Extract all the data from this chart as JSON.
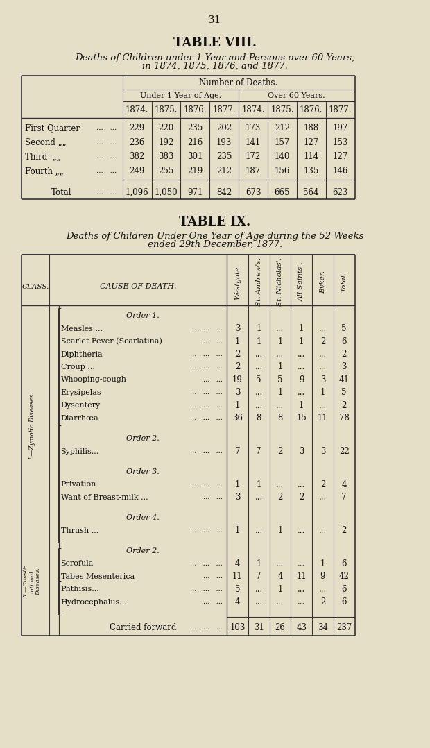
{
  "bg_color": "#cdc9bc",
  "text_color": "#1a1a1a",
  "page_number": "31",
  "table8": {
    "title": "TABLE VIII.",
    "subtitle1": "Deaths of Children under 1 Year and Persons over 60 Years,",
    "subtitle2": "in 1874, 1875, 1876, and 1877.",
    "header1": "Number of Deaths.",
    "header2a": "Under 1 Year of Age.",
    "header2b": "Over 60 Years.",
    "years": [
      "1874.",
      "1875.",
      "1876.",
      "1877.",
      "1874.",
      "1875.",
      "1876.",
      "1877."
    ],
    "rows": [
      {
        "label": "First Quarter",
        "dots": "...   ...",
        "vals": [
          "229",
          "220",
          "235",
          "202",
          "173",
          "212",
          "188",
          "197"
        ]
      },
      {
        "label": "Second „„",
        "dots": "...   ...",
        "vals": [
          "236",
          "192",
          "216",
          "193",
          "141",
          "157",
          "127",
          "153"
        ]
      },
      {
        "label": "Third  „„",
        "dots": "...   ...",
        "vals": [
          "382",
          "383",
          "301",
          "235",
          "172",
          "140",
          "114",
          "127"
        ]
      },
      {
        "label": "Fourth „„",
        "dots": "...   ...",
        "vals": [
          "249",
          "255",
          "219",
          "212",
          "187",
          "156",
          "135",
          "146"
        ]
      }
    ],
    "total_label": "Total",
    "total_vals": [
      "1,096",
      "1,050",
      "971",
      "842",
      "673",
      "665",
      "564",
      "623"
    ]
  },
  "table9": {
    "title": "TABLE IX.",
    "subtitle1": "Deaths of Children Under One Year of Age during the 52 Weeks",
    "subtitle2": "ended 29th December, 1877.",
    "col_headers": [
      "Westgate.",
      "St. Andrew's.",
      "St. Nicholas'.",
      "All Saints'.",
      "Byker.",
      "Total."
    ],
    "sections": [
      {
        "class_vertical": "I.—Zymotic Diseases.",
        "subsections": [
          {
            "order": "Order 1.",
            "rows": [
              {
                "cause": "Measles ...",
                "dots": "...   ...   ...",
                "vals": [
                  "3",
                  "1",
                  "...",
                  "1",
                  "...",
                  "5"
                ]
              },
              {
                "cause": "Scarlet Fever (Scarlatina)",
                "dots": "...   ...",
                "vals": [
                  "1",
                  "1",
                  "1",
                  "1",
                  "2",
                  "6"
                ]
              },
              {
                "cause": "Diphtheria",
                "dots": "...   ...   ...",
                "vals": [
                  "2",
                  "...",
                  "...",
                  "...",
                  "...",
                  "2"
                ]
              },
              {
                "cause": "Croup ...",
                "dots": "...   ...   ...",
                "vals": [
                  "2",
                  "...",
                  "1",
                  "...",
                  "...",
                  "3"
                ]
              },
              {
                "cause": "Whooping-cough",
                "dots": "...   ...",
                "vals": [
                  "19",
                  "5",
                  "5",
                  "9",
                  "3",
                  "41"
                ]
              },
              {
                "cause": "Erysipelas",
                "dots": "...   ...   ...",
                "vals": [
                  "3",
                  "...",
                  "1",
                  "...",
                  "1",
                  "5"
                ]
              },
              {
                "cause": "Dysentery",
                "dots": "...   ...   ...",
                "vals": [
                  "1",
                  "...",
                  "...",
                  "1",
                  "...",
                  "2"
                ]
              },
              {
                "cause": "Diarrhœa",
                "dots": "...   ...   ...",
                "vals": [
                  "36",
                  "8",
                  "8",
                  "15",
                  "11",
                  "78"
                ]
              }
            ]
          },
          {
            "order": "Order 2.",
            "rows": [
              {
                "cause": "Syphilis...",
                "dots": "...   ...   ...",
                "vals": [
                  "7",
                  "7",
                  "2",
                  "3",
                  "3",
                  "22"
                ]
              }
            ]
          },
          {
            "order": "Order 3.",
            "rows": [
              {
                "cause": "Privation",
                "dots": "...   ...   ...",
                "vals": [
                  "1",
                  "1",
                  "...",
                  "...",
                  "2",
                  "4"
                ]
              },
              {
                "cause": "Want of Breast-milk ...",
                "dots": "...   ...",
                "vals": [
                  "3",
                  "...",
                  "2",
                  "2",
                  "...",
                  "7"
                ]
              }
            ]
          },
          {
            "order": "Order 4.",
            "rows": [
              {
                "cause": "Thrush ...",
                "dots": "...   ...   ...",
                "vals": [
                  "1",
                  "...",
                  "1",
                  "...",
                  "...",
                  "2"
                ]
              }
            ]
          }
        ]
      },
      {
        "class_vertical": "II.—Consti-\ntutional\nDiseases.",
        "subsections": [
          {
            "order": "Order 2.",
            "rows": [
              {
                "cause": "Scrofula",
                "dots": "...   ...   ...",
                "vals": [
                  "4",
                  "1",
                  "...",
                  "...",
                  "1",
                  "6"
                ]
              },
              {
                "cause": "Tabes Mesenterica",
                "dots": "...   ...",
                "vals": [
                  "11",
                  "7",
                  "4",
                  "11",
                  "9",
                  "42"
                ]
              },
              {
                "cause": "Phthisis...",
                "dots": "...   ...   ...",
                "vals": [
                  "5",
                  "...",
                  "1",
                  "...",
                  "...",
                  "6"
                ]
              },
              {
                "cause": "Hydrocephalus...",
                "dots": "...   ...",
                "vals": [
                  "4",
                  "...",
                  "...",
                  "...",
                  "2",
                  "6"
                ]
              }
            ]
          }
        ]
      }
    ],
    "carried_forward": {
      "label": "Carried forward",
      "vals": [
        "103",
        "31",
        "26",
        "43",
        "34",
        "237"
      ]
    }
  }
}
